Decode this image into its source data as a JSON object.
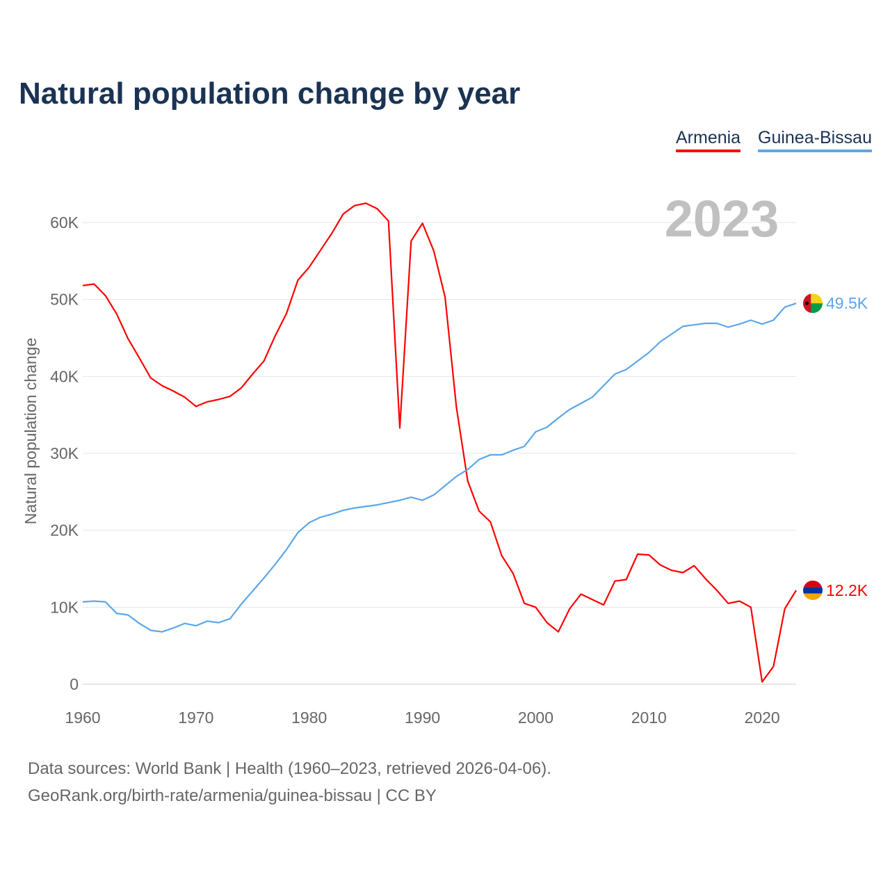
{
  "title": "Natural population change by year",
  "legend": [
    {
      "name": "Armenia",
      "color": "#ff0000"
    },
    {
      "name": "Guinea-Bissau",
      "color": "#5ba6e8"
    }
  ],
  "year_label": "2023",
  "footer": {
    "line1": "Data sources: World Bank | Health (1960–2023, retrieved 2026-04-06).",
    "line2": "GeoRank.org/birth-rate/armenia/guinea-bissau | CC BY"
  },
  "chart_data": {
    "type": "line",
    "title": "Natural population change by year",
    "xlabel": "",
    "ylabel": "Natural population change",
    "xlim": [
      1960,
      2023
    ],
    "ylim": [
      0,
      60000
    ],
    "x_ticks": [
      1960,
      1970,
      1980,
      1990,
      2000,
      2010,
      2020
    ],
    "y_ticks": [
      0,
      10000,
      20000,
      30000,
      40000,
      50000,
      60000
    ],
    "y_tick_labels": [
      "0",
      "10K",
      "20K",
      "30K",
      "40K",
      "50K",
      "60K"
    ],
    "grid": true,
    "legend_position": "top-right",
    "x": [
      1960,
      1961,
      1962,
      1963,
      1964,
      1965,
      1966,
      1967,
      1968,
      1969,
      1970,
      1971,
      1972,
      1973,
      1974,
      1975,
      1976,
      1977,
      1978,
      1979,
      1980,
      1981,
      1982,
      1983,
      1984,
      1985,
      1986,
      1987,
      1988,
      1989,
      1990,
      1991,
      1992,
      1993,
      1994,
      1995,
      1996,
      1997,
      1998,
      1999,
      2000,
      2001,
      2002,
      2003,
      2004,
      2005,
      2006,
      2007,
      2008,
      2009,
      2010,
      2011,
      2012,
      2013,
      2014,
      2015,
      2016,
      2017,
      2018,
      2019,
      2020,
      2021,
      2022,
      2023
    ],
    "series": [
      {
        "name": "Armenia",
        "color": "#ff0000",
        "end_label": "12.2K",
        "values": [
          51800,
          52000,
          50500,
          48100,
          44900,
          42400,
          39800,
          38800,
          38100,
          37300,
          36100,
          36700,
          37000,
          37400,
          38500,
          40300,
          42000,
          45300,
          48200,
          52500,
          54200,
          56400,
          58600,
          61100,
          62200,
          62500,
          61800,
          60200,
          33300,
          57600,
          59900,
          56300,
          50300,
          36000,
          26400,
          22500,
          21100,
          16700,
          14400,
          10500,
          10000,
          8000,
          6800,
          9800,
          11700,
          11000,
          10300,
          13400,
          13600,
          16900,
          16800,
          15500,
          14800,
          14500,
          15400,
          13700,
          12200,
          10500,
          10800,
          10000,
          300,
          2300,
          9800,
          12200
        ]
      },
      {
        "name": "Guinea-Bissau",
        "color": "#5ba6e8",
        "end_label": "49.5K",
        "values": [
          10700,
          10800,
          10700,
          9200,
          9000,
          7900,
          7000,
          6800,
          7300,
          7900,
          7600,
          8200,
          8000,
          8500,
          10400,
          12100,
          13800,
          15600,
          17500,
          19700,
          21000,
          21700,
          22100,
          22600,
          22900,
          23100,
          23300,
          23600,
          23900,
          24300,
          23900,
          24600,
          25800,
          27000,
          27900,
          29200,
          29800,
          29800,
          30400,
          30900,
          32800,
          33400,
          34600,
          35700,
          36500,
          37300,
          38800,
          40300,
          40900,
          42000,
          43100,
          44500,
          45500,
          46500,
          46700,
          46900,
          46900,
          46400,
          46800,
          47300,
          46800,
          47300,
          49000,
          49500
        ]
      }
    ]
  }
}
